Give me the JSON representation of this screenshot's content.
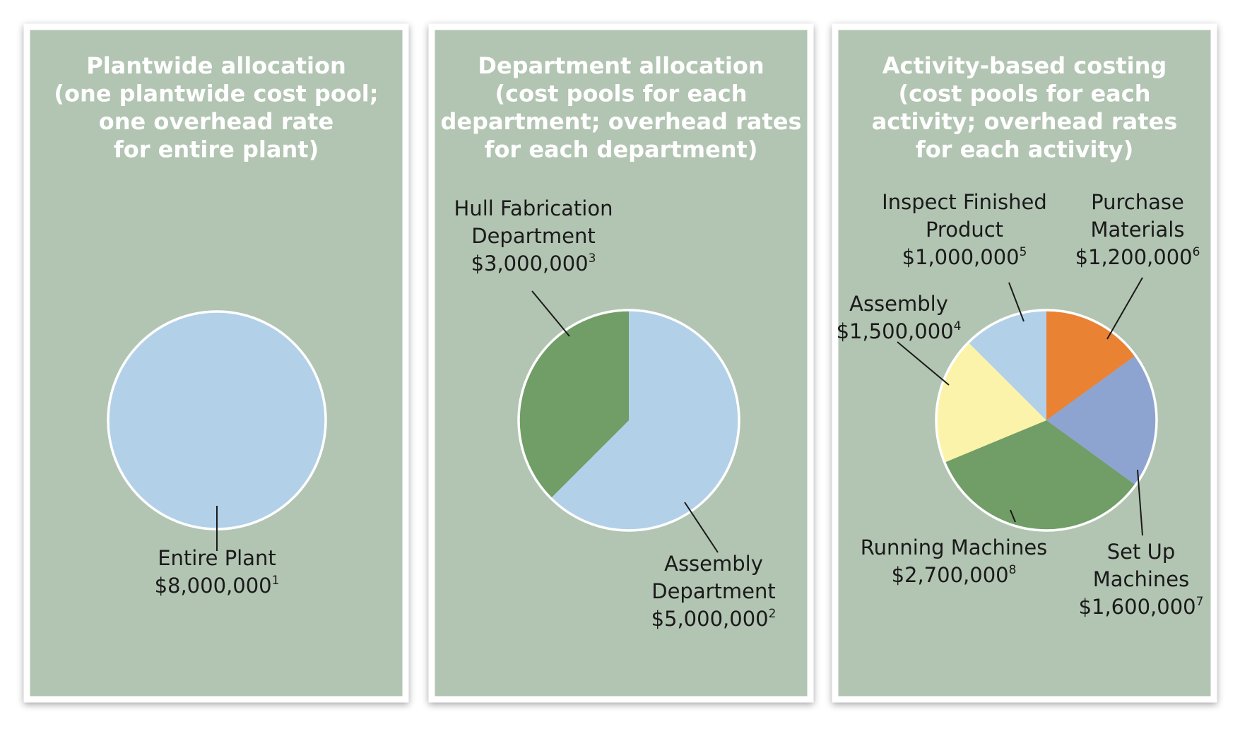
{
  "chart_data": [
    {
      "type": "pie",
      "title": [
        "Plantwide allocation",
        "(one plantwide cost pool;",
        "one overhead rate",
        "for entire plant)"
      ],
      "slices": [
        {
          "name": [
            "Entire Plant"
          ],
          "amount": "$8,000,000",
          "note": "1",
          "value": 8000000,
          "color": "#b3d0e9"
        }
      ]
    },
    {
      "type": "pie",
      "title": [
        "Department allocation",
        "(cost pools for each",
        "department; overhead rates",
        "for each department)"
      ],
      "slices": [
        {
          "name": [
            "Assembly",
            "Department"
          ],
          "amount": "$5,000,000",
          "note": "2",
          "value": 5000000,
          "color": "#b3d0e9"
        },
        {
          "name": [
            "Hull Fabrication",
            "Department"
          ],
          "amount": "$3,000,000",
          "note": "3",
          "value": 3000000,
          "color": "#719d67"
        }
      ]
    },
    {
      "type": "pie",
      "title": [
        "Activity-based costing",
        "(cost pools for each",
        "activity; overhead rates",
        "for each activity)"
      ],
      "slices": [
        {
          "name": [
            "Purchase",
            "Materials"
          ],
          "amount": "$1,200,000",
          "note": "6",
          "value": 1200000,
          "color": "#ea8233"
        },
        {
          "name": [
            "Set Up",
            "Machines"
          ],
          "amount": "$1,600,000",
          "note": "7",
          "value": 1600000,
          "color": "#8ea4d0"
        },
        {
          "name": [
            "Running Machines"
          ],
          "amount": "$2,700,000",
          "note": "8",
          "value": 2700000,
          "color": "#719d67"
        },
        {
          "name": [
            "Assembly"
          ],
          "amount": "$1,500,000",
          "note": "4",
          "value": 1500000,
          "color": "#fbf3a9"
        },
        {
          "name": [
            "Inspect Finished",
            "Product"
          ],
          "amount": "$1,000,000",
          "note": "5",
          "value": 1000000,
          "color": "#b3d0e9"
        }
      ]
    }
  ],
  "colors": {
    "panel_background": "#b2c4b2",
    "panel_border": "#ffffff",
    "slice_outline": "#ffffff",
    "leader_line": "#1a1a1a"
  }
}
